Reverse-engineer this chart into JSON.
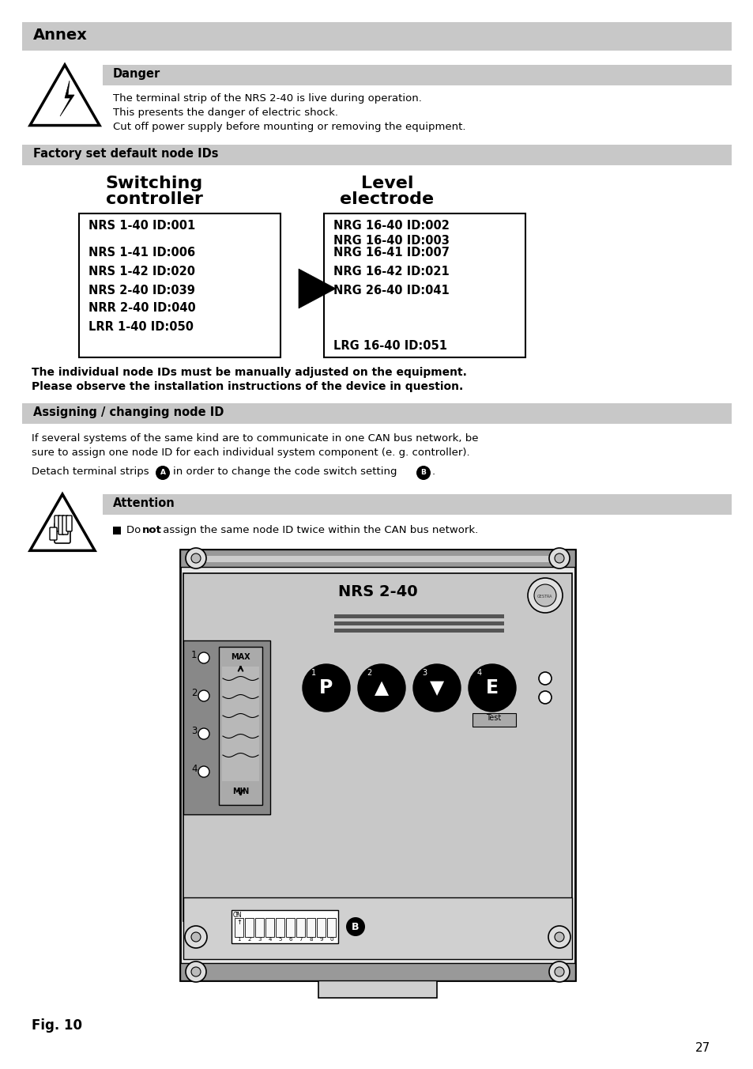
{
  "page_bg": "#ffffff",
  "header_bg": "#c8c8c8",
  "section_bg": "#c8c8c8",
  "annex_title": "Annex",
  "danger_label": "Danger",
  "danger_text": [
    "The terminal strip of the NRS 2-40 is live during operation.",
    "This presents the danger of electric shock.",
    "Cut off power supply before mounting or removing the equipment."
  ],
  "factory_label": "Factory set default node IDs",
  "left_items": [
    "NRS 1-40 ID:001",
    "",
    "NRS 1-41 ID:006",
    "NRS 1-42 ID:020",
    "NRS 2-40 ID:039",
    "NRR 2-40 ID:040",
    "LRR 1-40 ID:050"
  ],
  "right_items": [
    "NRG 16-40 ID:002",
    "NRG 16-40 ID:003",
    "NRG 16-41 ID:007",
    "NRG 16-42 ID:021",
    "NRG 26-40 ID:041",
    "",
    "LRG 16-40 ID:051"
  ],
  "note_text": [
    "The individual node IDs must be manually adjusted on the equipment.",
    "Please observe the installation instructions of the device in question."
  ],
  "assigning_label": "Assigning / changing node ID",
  "assigning_text1": "If several systems of the same kind are to communicate in one CAN bus network, be",
  "assigning_text2": "sure to assign one node ID for each individual system component (e. g. controller).",
  "assigning_text3": "Detach terminal strips",
  "assigning_text3b": "in order to change the code switch setting",
  "attention_label": "Attention",
  "fig_label": "Fig. 10",
  "page_number": "27"
}
